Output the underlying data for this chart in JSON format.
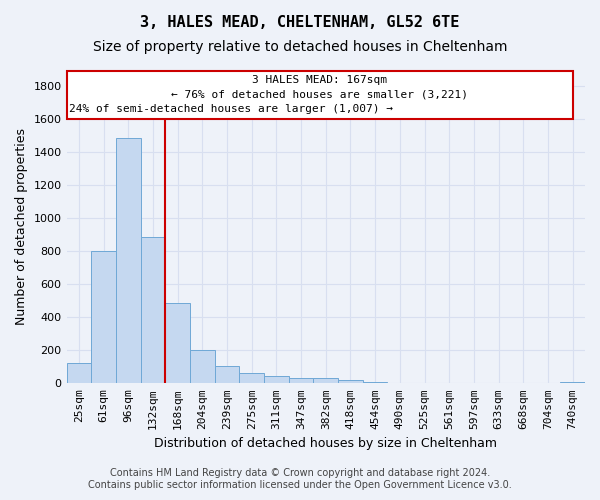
{
  "title": "3, HALES MEAD, CHELTENHAM, GL52 6TE",
  "subtitle": "Size of property relative to detached houses in Cheltenham",
  "xlabel": "Distribution of detached houses by size in Cheltenham",
  "ylabel": "Number of detached properties",
  "footer_line1": "Contains HM Land Registry data © Crown copyright and database right 2024.",
  "footer_line2": "Contains public sector information licensed under the Open Government Licence v3.0.",
  "categories": [
    "25sqm",
    "61sqm",
    "96sqm",
    "132sqm",
    "168sqm",
    "204sqm",
    "239sqm",
    "275sqm",
    "311sqm",
    "347sqm",
    "382sqm",
    "418sqm",
    "454sqm",
    "490sqm",
    "525sqm",
    "561sqm",
    "597sqm",
    "633sqm",
    "668sqm",
    "704sqm",
    "740sqm"
  ],
  "values": [
    125,
    800,
    1490,
    885,
    490,
    205,
    105,
    65,
    45,
    35,
    30,
    20,
    10,
    0,
    0,
    0,
    0,
    0,
    0,
    0,
    10
  ],
  "bar_color": "#c5d8f0",
  "bar_edge_color": "#6fa8d6",
  "marker_bin_index": 4,
  "marker_line_color": "#cc0000",
  "annotation_text_line1": "3 HALES MEAD: 167sqm",
  "annotation_text_line2": "← 76% of detached houses are smaller (3,221)",
  "annotation_text_line3": "24% of semi-detached houses are larger (1,007) →",
  "annotation_box_color": "#cc0000",
  "ylim": [
    0,
    1900
  ],
  "yticks": [
    0,
    200,
    400,
    600,
    800,
    1000,
    1200,
    1400,
    1600,
    1800
  ],
  "bg_color": "#eef2f9",
  "grid_color": "#d8dff0",
  "title_fontsize": 11,
  "subtitle_fontsize": 10,
  "axis_label_fontsize": 9,
  "tick_fontsize": 8,
  "footer_fontsize": 7
}
